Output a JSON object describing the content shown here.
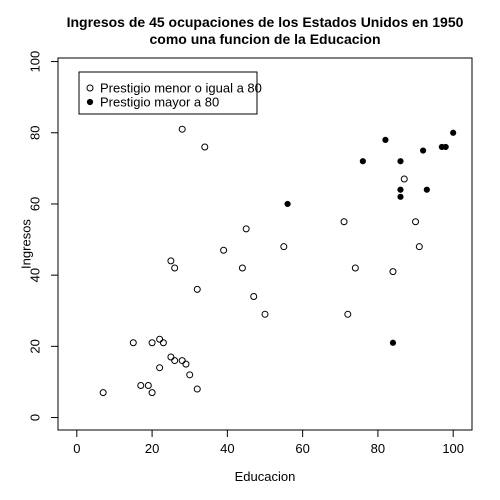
{
  "chart_data": {
    "type": "scatter",
    "title": [
      "Ingresos de 45 ocupaciones de los Estados Unidos en 1950",
      "como una funcion de la Educacion"
    ],
    "xlabel": "Educacion",
    "ylabel": "Ingresos",
    "xlim": [
      -5,
      105
    ],
    "ylim": [
      -3.5,
      101
    ],
    "xticks": [
      0,
      20,
      40,
      60,
      80,
      100
    ],
    "yticks": [
      0,
      20,
      40,
      60,
      80,
      100
    ],
    "grid": false,
    "legend_position": "top-left",
    "series": [
      {
        "name": "Prestigio menor o igual a 80",
        "marker": "open-circle",
        "points": [
          [
            7,
            7
          ],
          [
            15,
            21
          ],
          [
            17,
            9
          ],
          [
            19,
            9
          ],
          [
            20,
            7
          ],
          [
            20,
            21
          ],
          [
            22,
            14
          ],
          [
            22,
            22
          ],
          [
            23,
            21
          ],
          [
            25,
            17
          ],
          [
            25,
            44
          ],
          [
            26,
            16
          ],
          [
            26,
            42
          ],
          [
            28,
            16
          ],
          [
            28,
            81
          ],
          [
            29,
            15
          ],
          [
            30,
            12
          ],
          [
            32,
            8
          ],
          [
            32,
            36
          ],
          [
            34,
            76
          ],
          [
            39,
            47
          ],
          [
            44,
            42
          ],
          [
            45,
            53
          ],
          [
            47,
            34
          ],
          [
            50,
            29
          ],
          [
            55,
            48
          ],
          [
            71,
            55
          ],
          [
            72,
            29
          ],
          [
            74,
            42
          ],
          [
            84,
            41
          ],
          [
            87,
            67
          ],
          [
            90,
            55
          ],
          [
            91,
            48
          ]
        ]
      },
      {
        "name": "Prestigio mayor a 80",
        "marker": "filled-circle",
        "points": [
          [
            56,
            60
          ],
          [
            76,
            72
          ],
          [
            82,
            78
          ],
          [
            84,
            21
          ],
          [
            86,
            72
          ],
          [
            86,
            64
          ],
          [
            86,
            62
          ],
          [
            92,
            75
          ],
          [
            93,
            64
          ],
          [
            97,
            76
          ],
          [
            98,
            76
          ],
          [
            100,
            80
          ]
        ]
      }
    ]
  }
}
